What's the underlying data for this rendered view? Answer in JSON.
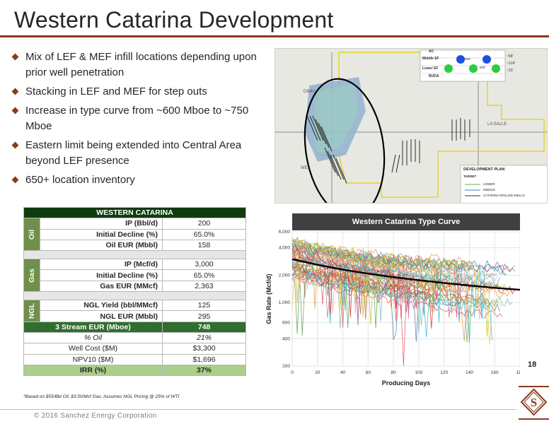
{
  "title": "Western Catarina Development",
  "bullets": [
    "Mix of LEF & MEF infill locations depending upon prior well penetration",
    "Stacking in LEF and MEF for step outs",
    "Increase in type curve from ~600 Mboe to ~750 Mboe",
    "Eastern limit being extended into Central Area beyond LEF presence",
    "650+ location inventory"
  ],
  "map": {
    "county_dimmit": "DIMM",
    "county_lasalle": "LA SALLE",
    "county_webb": "WEB",
    "inset_labels": [
      "AC",
      "Middle EF",
      "Lower EF",
      "BUDA"
    ],
    "inset_values": [
      "~58'",
      "~124'",
      "~23'"
    ],
    "inset_spacing": [
      "900'",
      "900'"
    ],
    "legend": {
      "title": "DEVELOPMENT PLAN",
      "subtitle": "TARGET",
      "items": [
        "LOWER",
        "MIDDLE",
        "CATARINA DRILLED WELLS"
      ]
    }
  },
  "table": {
    "header": "WESTERN CATARINA",
    "oil": {
      "category": "Oil",
      "rows": [
        {
          "label": "IP (Bbl/d)",
          "value": "200"
        },
        {
          "label": "Initial Decline (%)",
          "value": "65.0%"
        },
        {
          "label": "Oil EUR (Mbbl)",
          "value": "158"
        }
      ]
    },
    "gas": {
      "category": "Gas",
      "rows": [
        {
          "label": "IP (Mcf/d)",
          "value": "3,000"
        },
        {
          "label": "Initial Decline (%)",
          "value": "65.0%"
        },
        {
          "label": "Gas EUR (MMcf)",
          "value": "2,363"
        }
      ]
    },
    "ngl": {
      "category": "NGL",
      "rows": [
        {
          "label": "NGL Yield (bbl/MMcf)",
          "value": "125"
        },
        {
          "label": "NGL EUR (Mbbl)",
          "value": "295"
        }
      ]
    },
    "eur": {
      "label": "3 Stream EUR (Mboe)",
      "value": "748"
    },
    "pct_oil": {
      "label": "% Oil",
      "value": "21%"
    },
    "well_cost": {
      "label": "Well Cost ($M)",
      "value": "$3,300"
    },
    "npv10": {
      "label": "NPV10 ($M)",
      "value": "$1,696"
    },
    "irr": {
      "label": "IRR (%)",
      "value": "37%"
    }
  },
  "footnote": "*Based on $55/Bbl Oil; $3.50/Mcf Gas; Assumes NGL Pricing @ 25% of WTI",
  "chart_data": {
    "type": "line",
    "title": "Western Catarina Type Curve",
    "xlabel": "Producing Days",
    "ylabel": "Gas Rate (Mcf/d)",
    "xlim": [
      0,
      180
    ],
    "ylim": [
      200,
      6000
    ],
    "y_scale": "log",
    "x_ticks": [
      0,
      20,
      40,
      60,
      80,
      100,
      120,
      140,
      160,
      180
    ],
    "y_ticks": [
      200,
      400,
      600,
      1000,
      2000,
      4000,
      6000
    ],
    "y_tick_labels": [
      "200",
      "400",
      "600",
      "1,000",
      "2,000",
      "4,000",
      "6,000"
    ],
    "grid": true,
    "type_curve": {
      "x": [
        0,
        20,
        40,
        60,
        80,
        100,
        120,
        140,
        160,
        180
      ],
      "y": [
        3000,
        2600,
        2300,
        2080,
        1900,
        1760,
        1640,
        1540,
        1450,
        1380
      ]
    },
    "well_series_count": 60,
    "colors": {
      "type_curve": "#000000",
      "wells": [
        "#e84a5f",
        "#f28e2b",
        "#4e79a7",
        "#59a14f",
        "#edc948",
        "#b07aa1",
        "#ff9da7",
        "#9c755f",
        "#76b7b2",
        "#d62728",
        "#17becf",
        "#bcbd22"
      ]
    }
  },
  "page_number": "18",
  "copyright": "© 2016 Sanchez Energy Corporation",
  "logo_letter": "S",
  "colors": {
    "accent": "#8b3a1e",
    "table_header": "#0f3b0f",
    "table_category": "#6f8f4a",
    "eur_row": "#2f6e2f",
    "irr_row": "#a9cf8a"
  }
}
